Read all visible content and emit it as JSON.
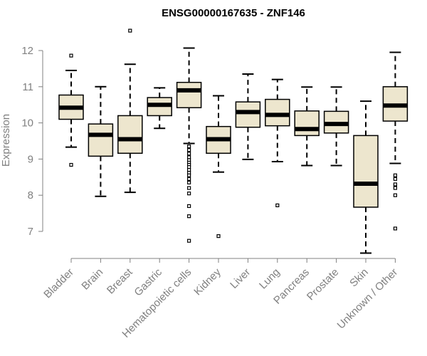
{
  "chart_data": {
    "type": "boxplot",
    "title": "ENSG00000167635 - ZNF146",
    "ylabel": "Expression",
    "xlabel": "",
    "ylim": [
      6.3,
      12.7
    ],
    "yticks": [
      7,
      8,
      9,
      10,
      11,
      12
    ],
    "grid": false,
    "box_fill": "#ede6ce",
    "categories": [
      "Bladder",
      "Brain",
      "Breast",
      "Gastric",
      "Hematopoietic cells",
      "Kidney",
      "Liver",
      "Lung",
      "Pancreas",
      "Prostate",
      "Skin",
      "Unknown / Other"
    ],
    "boxes": [
      {
        "whisker_low": 9.33,
        "q1": 10.1,
        "median": 10.42,
        "q3": 10.77,
        "whisker_high": 11.45,
        "outliers": [
          11.86,
          8.84
        ]
      },
      {
        "whisker_low": 7.97,
        "q1": 9.08,
        "median": 9.67,
        "q3": 9.97,
        "whisker_high": 11.0,
        "outliers": []
      },
      {
        "whisker_low": 8.08,
        "q1": 9.16,
        "median": 9.55,
        "q3": 10.2,
        "whisker_high": 11.62,
        "outliers": [
          12.55
        ]
      },
      {
        "whisker_low": 9.85,
        "q1": 10.2,
        "median": 10.5,
        "q3": 10.7,
        "whisker_high": 10.97,
        "outliers": []
      },
      {
        "whisker_low": 9.43,
        "q1": 10.42,
        "median": 10.9,
        "q3": 11.12,
        "whisker_high": 12.07,
        "outliers": [
          9.35,
          9.25,
          9.15,
          9.05,
          8.97,
          8.9,
          8.84,
          8.78,
          8.7,
          8.62,
          8.55,
          8.45,
          8.35,
          8.2,
          8.05,
          7.7,
          7.42,
          6.74
        ]
      },
      {
        "whisker_low": 8.64,
        "q1": 9.16,
        "median": 9.55,
        "q3": 9.9,
        "whisker_high": 10.75,
        "outliers": [
          6.87
        ]
      },
      {
        "whisker_low": 8.99,
        "q1": 9.88,
        "median": 10.3,
        "q3": 10.58,
        "whisker_high": 11.35,
        "outliers": []
      },
      {
        "whisker_low": 8.93,
        "q1": 9.92,
        "median": 10.22,
        "q3": 10.65,
        "whisker_high": 11.2,
        "outliers": [
          7.72
        ]
      },
      {
        "whisker_low": 8.82,
        "q1": 9.65,
        "median": 9.83,
        "q3": 10.33,
        "whisker_high": 10.99,
        "outliers": []
      },
      {
        "whisker_low": 8.82,
        "q1": 9.72,
        "median": 9.97,
        "q3": 10.32,
        "whisker_high": 10.99,
        "outliers": []
      },
      {
        "whisker_low": 6.4,
        "q1": 7.67,
        "median": 8.32,
        "q3": 9.65,
        "whisker_high": 10.6,
        "outliers": []
      },
      {
        "whisker_low": 8.88,
        "q1": 10.05,
        "median": 10.48,
        "q3": 11.0,
        "whisker_high": 11.95,
        "outliers": [
          8.55,
          8.45,
          8.3,
          8.2,
          8.0,
          7.08
        ]
      }
    ]
  }
}
